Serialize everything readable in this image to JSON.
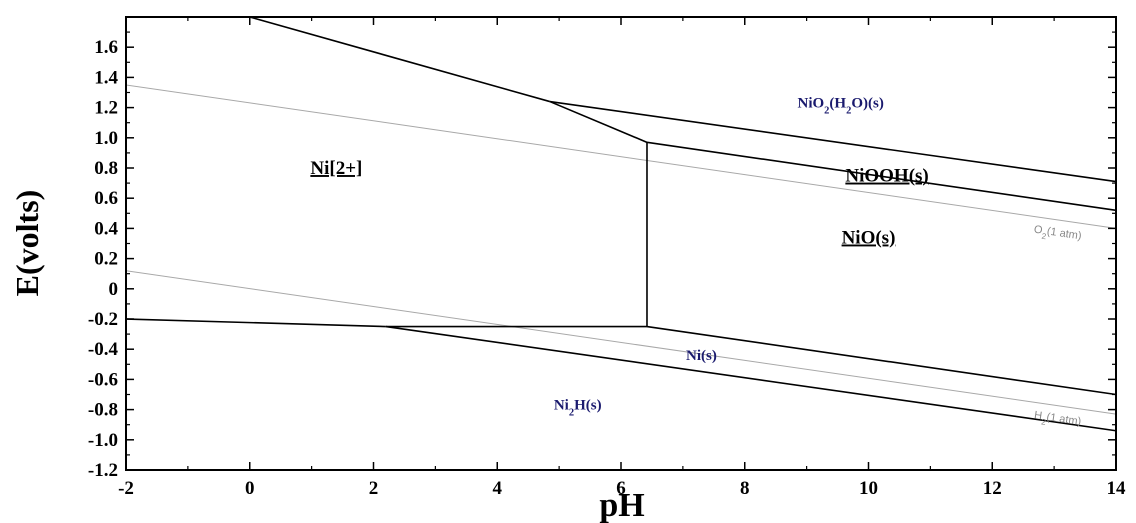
{
  "chart_data": {
    "type": "line",
    "title": "",
    "xlabel": "pH",
    "ylabel": "E(volts)",
    "xlim": [
      -2,
      14
    ],
    "ylim": [
      -1.2,
      1.8
    ],
    "grid": false,
    "x_ticks": [
      -2,
      0,
      2,
      4,
      6,
      8,
      10,
      12,
      14
    ],
    "x_tick_labels": [
      "-2",
      "0",
      "2",
      "4",
      "6",
      "8",
      "10",
      "12",
      "14"
    ],
    "y_ticks": [
      -1.2,
      -1.0,
      -0.8,
      -0.6,
      -0.4,
      -0.2,
      0,
      0.2,
      0.4,
      0.6,
      0.8,
      1.0,
      1.2,
      1.4,
      1.6
    ],
    "y_tick_labels": [
      "-1.2",
      "-1.0",
      "-0.8",
      "-0.6",
      "-0.4",
      "-0.2",
      "0",
      "0.2",
      "0.4",
      "0.6",
      "0.8",
      "1.0",
      "1.2",
      "1.4",
      "1.6"
    ],
    "boundaries": [
      {
        "x": [
          0.0,
          4.85
        ],
        "y": [
          1.8,
          1.24
        ]
      },
      {
        "x": [
          4.85,
          6.42
        ],
        "y": [
          1.24,
          0.97
        ]
      },
      {
        "x": [
          4.85,
          14
        ],
        "y": [
          1.24,
          0.71
        ]
      },
      {
        "x": [
          6.42,
          14
        ],
        "y": [
          0.97,
          0.52
        ]
      },
      {
        "x": [
          6.42,
          6.42
        ],
        "y": [
          0.97,
          -0.25
        ]
      },
      {
        "x": [
          -2,
          2.2
        ],
        "y": [
          -0.2,
          -0.25
        ]
      },
      {
        "x": [
          2.2,
          6.42
        ],
        "y": [
          -0.25,
          -0.25
        ]
      },
      {
        "x": [
          6.42,
          14
        ],
        "y": [
          -0.25,
          -0.7
        ]
      },
      {
        "x": [
          2.2,
          14
        ],
        "y": [
          -0.25,
          -0.94
        ]
      }
    ],
    "reference_lines": [
      {
        "x": [
          -2,
          14
        ],
        "y": [
          1.35,
          0.4
        ]
      },
      {
        "x": [
          -2,
          14
        ],
        "y": [
          0.12,
          -0.83
        ]
      }
    ],
    "regions": [
      {
        "label": "Ni[2+]",
        "x": 1.4,
        "y": 0.76,
        "color": "#000000",
        "underline": true
      },
      {
        "label": "NiO(s)",
        "x": 10.0,
        "y": 0.3,
        "color": "#000000",
        "underline": true
      },
      {
        "label": "NiOOH(s)",
        "x": 10.3,
        "y": 0.71,
        "color": "#000000",
        "underline": true
      },
      {
        "label": "Ni(s)",
        "x": 7.3,
        "y": -0.47,
        "color": "#1a1a6e",
        "underline": false
      },
      {
        "label": "NiO2(H2O)(s)",
        "x": 9.55,
        "y": 1.2,
        "color": "#1a1a6e",
        "underline": false
      },
      {
        "label": "Ni2H(s)",
        "x": 5.3,
        "y": -0.8,
        "color": "#1a1a6e",
        "underline": false
      }
    ],
    "gas_labels": [
      {
        "label": "O2(1 atm)",
        "x": 13.05,
        "y": 0.35
      },
      {
        "label": "H2(1 atm)",
        "x": 13.05,
        "y": -0.88
      }
    ]
  }
}
